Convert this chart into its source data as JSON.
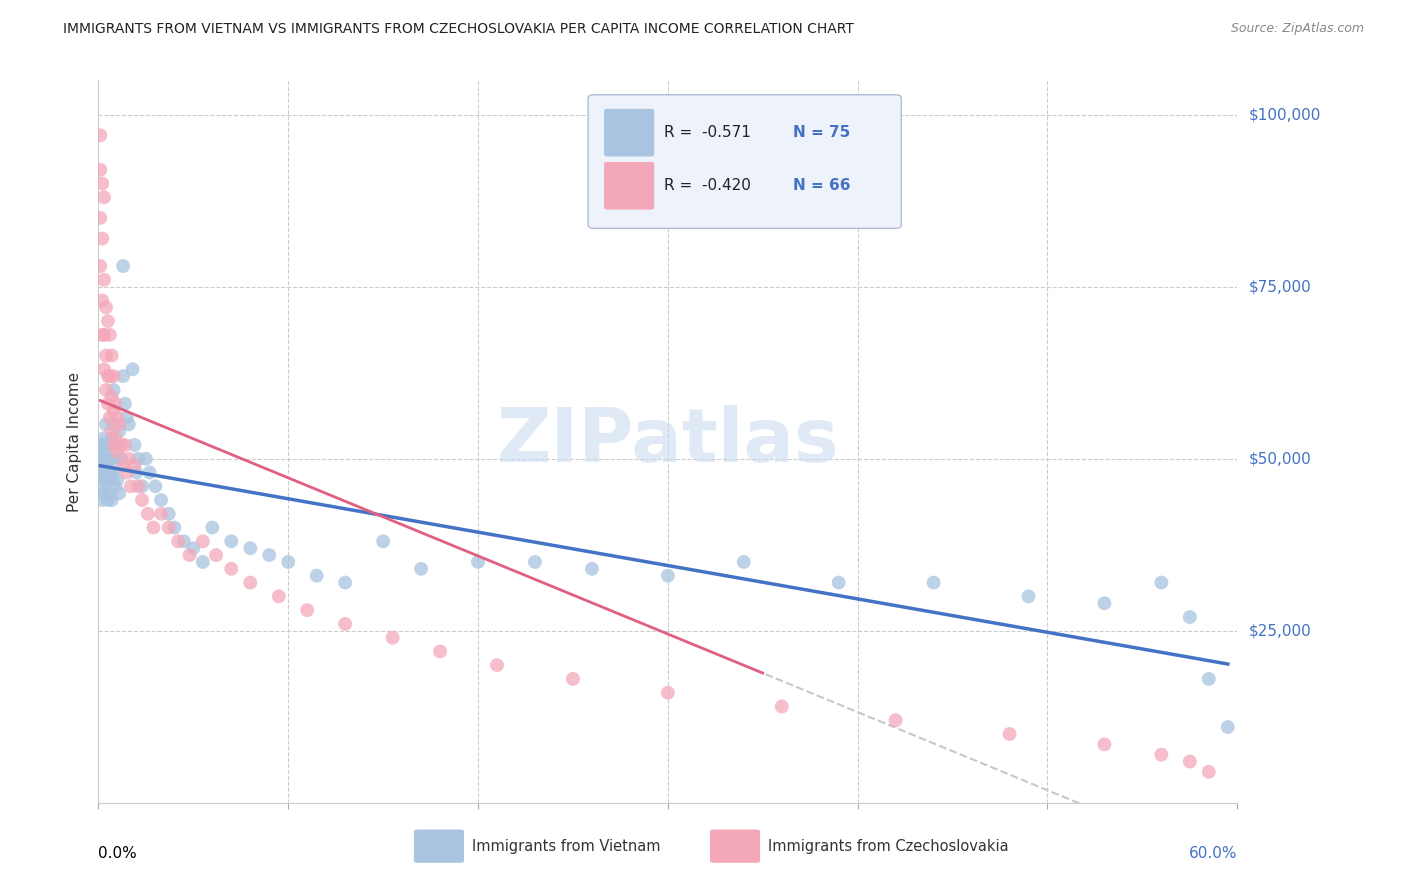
{
  "title": "IMMIGRANTS FROM VIETNAM VS IMMIGRANTS FROM CZECHOSLOVAKIA PER CAPITA INCOME CORRELATION CHART",
  "source": "Source: ZipAtlas.com",
  "ylabel": "Per Capita Income",
  "watermark": "ZIPatlas",
  "legend_r1": "R =  -0.571",
  "legend_n1": "N = 75",
  "legend_r2": "R =  -0.420",
  "legend_n2": "N = 66",
  "color_vietnam": "#a8c4e0",
  "color_czech": "#f4a7b9",
  "color_line_vietnam": "#4472c4",
  "color_line_czech": "#e06080",
  "color_line_czech_ext": "#c8c8c8",
  "color_axis_right": "#4472c4",
  "xlim": [
    0.0,
    0.6
  ],
  "ylim": [
    0,
    105000
  ],
  "yticks": [
    25000,
    50000,
    75000,
    100000
  ],
  "ytick_labels": [
    "$25,000",
    "$50,000",
    "$75,000",
    "$100,000"
  ],
  "vietnam_x": [
    0.001,
    0.001,
    0.001,
    0.002,
    0.002,
    0.002,
    0.002,
    0.003,
    0.003,
    0.003,
    0.003,
    0.004,
    0.004,
    0.004,
    0.005,
    0.005,
    0.005,
    0.005,
    0.006,
    0.006,
    0.006,
    0.007,
    0.007,
    0.007,
    0.008,
    0.008,
    0.008,
    0.009,
    0.009,
    0.01,
    0.01,
    0.011,
    0.011,
    0.012,
    0.013,
    0.013,
    0.014,
    0.015,
    0.016,
    0.018,
    0.019,
    0.02,
    0.021,
    0.023,
    0.025,
    0.027,
    0.03,
    0.033,
    0.037,
    0.04,
    0.045,
    0.05,
    0.055,
    0.06,
    0.07,
    0.08,
    0.09,
    0.1,
    0.115,
    0.13,
    0.15,
    0.17,
    0.2,
    0.23,
    0.26,
    0.3,
    0.34,
    0.39,
    0.44,
    0.49,
    0.53,
    0.56,
    0.575,
    0.585,
    0.595
  ],
  "vietnam_y": [
    50000,
    48000,
    52000,
    46000,
    49000,
    52000,
    44000,
    51000,
    47000,
    53000,
    45000,
    50000,
    48000,
    55000,
    44000,
    49000,
    47000,
    52000,
    45000,
    50000,
    48000,
    47000,
    53000,
    44000,
    60000,
    55000,
    48000,
    52000,
    46000,
    50000,
    47000,
    54000,
    45000,
    50000,
    78000,
    62000,
    58000,
    56000,
    55000,
    63000,
    52000,
    48000,
    50000,
    46000,
    50000,
    48000,
    46000,
    44000,
    42000,
    40000,
    38000,
    37000,
    35000,
    40000,
    38000,
    37000,
    36000,
    35000,
    33000,
    32000,
    38000,
    34000,
    35000,
    35000,
    34000,
    33000,
    35000,
    32000,
    32000,
    30000,
    29000,
    32000,
    27000,
    18000,
    11000
  ],
  "czech_x": [
    0.001,
    0.001,
    0.001,
    0.001,
    0.002,
    0.002,
    0.002,
    0.002,
    0.003,
    0.003,
    0.003,
    0.003,
    0.004,
    0.004,
    0.004,
    0.005,
    0.005,
    0.005,
    0.006,
    0.006,
    0.006,
    0.007,
    0.007,
    0.007,
    0.008,
    0.008,
    0.008,
    0.009,
    0.009,
    0.01,
    0.01,
    0.011,
    0.012,
    0.013,
    0.014,
    0.015,
    0.016,
    0.017,
    0.019,
    0.021,
    0.023,
    0.026,
    0.029,
    0.033,
    0.037,
    0.042,
    0.048,
    0.055,
    0.062,
    0.07,
    0.08,
    0.095,
    0.11,
    0.13,
    0.155,
    0.18,
    0.21,
    0.25,
    0.3,
    0.36,
    0.42,
    0.48,
    0.53,
    0.56,
    0.575,
    0.585
  ],
  "czech_y": [
    97000,
    92000,
    85000,
    78000,
    90000,
    82000,
    73000,
    68000,
    88000,
    76000,
    68000,
    63000,
    72000,
    65000,
    60000,
    70000,
    62000,
    58000,
    68000,
    62000,
    56000,
    65000,
    59000,
    54000,
    62000,
    57000,
    52000,
    58000,
    53000,
    56000,
    51000,
    55000,
    52000,
    49000,
    52000,
    48000,
    50000,
    46000,
    49000,
    46000,
    44000,
    42000,
    40000,
    42000,
    40000,
    38000,
    36000,
    38000,
    36000,
    34000,
    32000,
    30000,
    28000,
    26000,
    24000,
    22000,
    20000,
    18000,
    16000,
    14000,
    12000,
    10000,
    8500,
    7000,
    6000,
    4500
  ]
}
